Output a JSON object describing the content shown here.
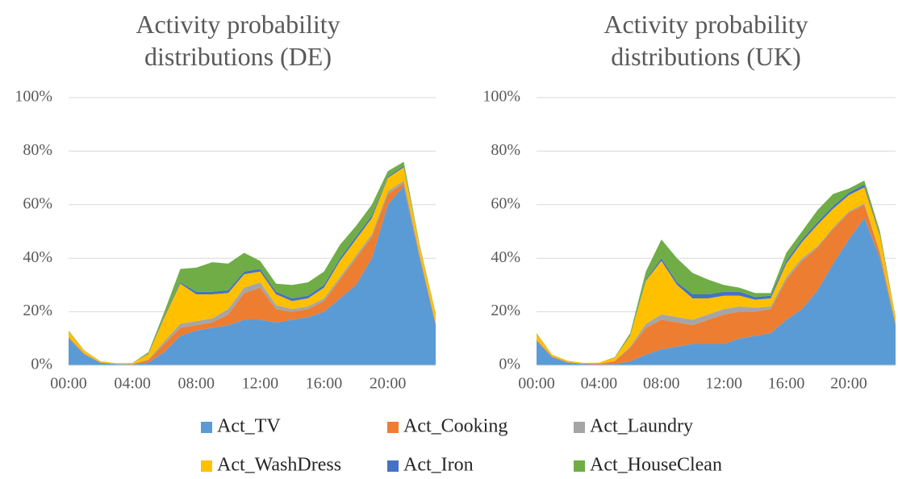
{
  "chart_data": [
    {
      "type": "stacked-area",
      "title": "Activity probability\ndistributions (DE)",
      "categories": [
        "00:00",
        null,
        null,
        null,
        "04:00",
        null,
        null,
        null,
        "08:00",
        null,
        null,
        null,
        "12:00",
        null,
        null,
        null,
        "16:00",
        null,
        null,
        null,
        "20:00",
        null,
        null,
        null
      ],
      "ylim": [
        0,
        100
      ],
      "yticks": [
        {
          "value": 0,
          "label": "0%"
        },
        {
          "value": 20,
          "label": "20%"
        },
        {
          "value": 40,
          "label": "40%"
        },
        {
          "value": 60,
          "label": "60%"
        },
        {
          "value": 80,
          "label": "80%"
        },
        {
          "value": 100,
          "label": "100%"
        }
      ],
      "grid": true,
      "legend": "bottom",
      "series": [
        {
          "name": "Act_TV",
          "color": "#5b9bd5",
          "values": [
            10,
            4,
            1,
            0.5,
            0.3,
            1,
            5,
            11,
            13,
            14,
            15,
            17,
            17,
            16,
            17,
            18,
            20,
            25,
            30,
            40,
            60,
            67,
            40,
            15
          ]
        },
        {
          "name": "Act_Cooking",
          "color": "#ed7d31",
          "values": [
            0.5,
            0.3,
            0,
            0,
            0.2,
            1,
            3,
            3,
            2,
            2,
            4,
            10,
            12,
            5,
            3,
            3,
            4,
            7,
            10,
            8,
            4,
            1,
            1,
            0.5
          ]
        },
        {
          "name": "Act_Laundry",
          "color": "#a5a5a5",
          "values": [
            0.2,
            0.1,
            0,
            0,
            0,
            0.2,
            1,
            1.5,
            1.5,
            1.5,
            2,
            2,
            2,
            1.5,
            1,
            1,
            1,
            1,
            1,
            1,
            1,
            1,
            0.5,
            0.2
          ]
        },
        {
          "name": "Act_WashDress",
          "color": "#ffc000",
          "values": [
            2,
            1,
            0.5,
            0.3,
            0.4,
            2,
            9,
            15,
            10,
            9,
            6,
            5,
            4,
            4,
            3,
            3,
            4,
            6,
            6,
            6,
            5,
            5,
            3,
            3.5
          ]
        },
        {
          "name": "Act_Iron",
          "color": "#4472c4",
          "values": [
            0,
            0,
            0,
            0,
            0,
            0.2,
            0.5,
            0.5,
            1,
            1,
            1,
            1,
            1,
            1,
            1,
            1,
            1,
            1,
            1,
            1,
            0.5,
            0.5,
            0.2,
            0.1
          ]
        },
        {
          "name": "Act_HouseClean",
          "color": "#70ad47",
          "values": [
            0.3,
            0.1,
            0,
            0,
            0,
            0.5,
            1.5,
            5,
            9,
            11,
            10,
            7,
            3,
            3,
            5,
            5,
            5,
            5,
            4,
            4,
            2,
            1.5,
            0.3,
            0.2
          ]
        }
      ]
    },
    {
      "type": "stacked-area",
      "title": "Activity probability\ndistributions (UK)",
      "categories": [
        "00:00",
        null,
        null,
        null,
        "04:00",
        null,
        null,
        null,
        "08:00",
        null,
        null,
        null,
        "12:00",
        null,
        null,
        null,
        "16:00",
        null,
        null,
        null,
        "20:00",
        null,
        null,
        null
      ],
      "ylim": [
        0,
        100
      ],
      "yticks": [
        {
          "value": 0,
          "label": "0%"
        },
        {
          "value": 20,
          "label": "20%"
        },
        {
          "value": 40,
          "label": "40%"
        },
        {
          "value": 60,
          "label": "60%"
        },
        {
          "value": 80,
          "label": "80%"
        },
        {
          "value": 100,
          "label": "100%"
        }
      ],
      "grid": true,
      "series": [
        {
          "color": "#5b9bd5",
          "values": [
            9,
            3,
            1,
            0.5,
            0.3,
            0.5,
            1.5,
            4,
            6,
            7,
            8,
            8,
            8,
            10,
            11,
            12,
            17,
            21,
            28,
            38,
            47,
            55,
            40,
            15
          ]
        },
        {
          "color": "#ed7d31",
          "values": [
            0.5,
            0.3,
            0.2,
            0.1,
            0.3,
            1,
            5,
            10,
            11,
            9,
            7,
            9,
            11,
            10,
            9,
            9,
            15,
            18,
            16,
            13,
            10,
            5,
            2,
            0.5
          ]
        },
        {
          "color": "#a5a5a5",
          "values": [
            0.2,
            0.1,
            0,
            0,
            0,
            0.1,
            0.5,
            1.5,
            2,
            2,
            2,
            2,
            2,
            2,
            1.5,
            1,
            1,
            1,
            0.5,
            0.5,
            0.5,
            0.5,
            0.3,
            0.1
          ]
        },
        {
          "color": "#ffc000",
          "values": [
            2,
            0.5,
            0.5,
            0.3,
            0.4,
            1.2,
            4,
            16,
            20,
            12,
            8,
            6,
            5,
            4,
            3,
            3,
            5,
            6,
            8,
            7,
            6,
            6,
            6,
            2
          ]
        },
        {
          "color": "#4472c4",
          "values": [
            0,
            0,
            0,
            0,
            0,
            0,
            0.2,
            0.5,
            1,
            1,
            1.5,
            1.5,
            1.5,
            1.5,
            1,
            1,
            1,
            1,
            1,
            1,
            1,
            1,
            0.5,
            0.2
          ]
        },
        {
          "color": "#70ad47",
          "values": [
            0.3,
            0.1,
            0,
            0,
            0,
            0.2,
            0.8,
            3,
            7,
            9,
            8,
            5.5,
            2.5,
            1.5,
            1.5,
            1,
            3,
            3,
            4.5,
            4.5,
            1.5,
            1.5,
            1.2,
            0.2
          ]
        }
      ]
    }
  ]
}
